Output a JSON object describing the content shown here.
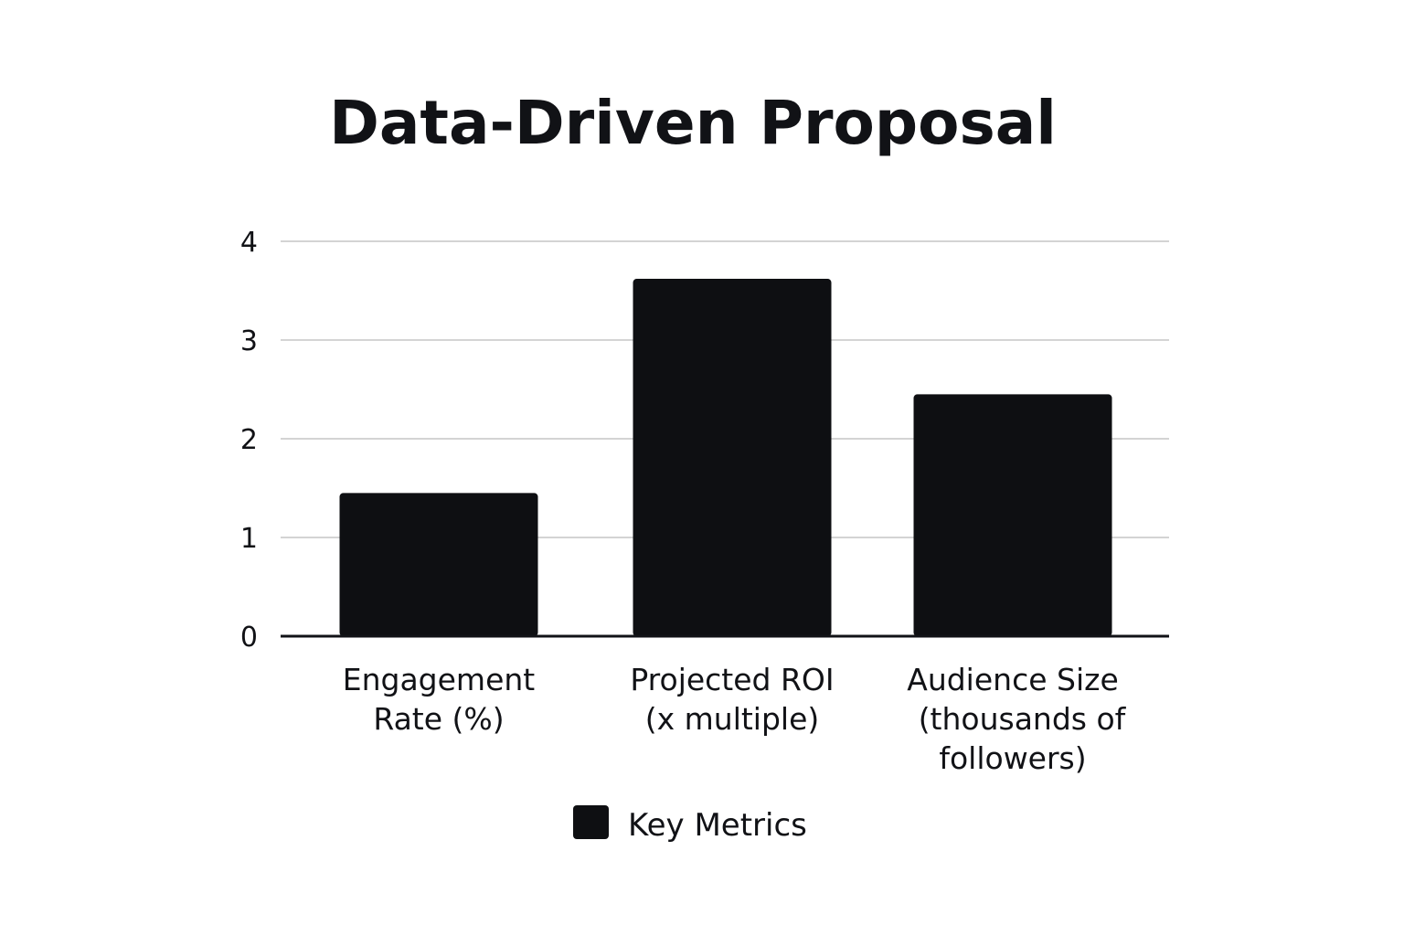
{
  "chart_data": {
    "type": "bar",
    "title": "Data-Driven Proposal",
    "xlabel": "",
    "ylabel": "",
    "categories": [
      [
        "Engagement",
        "Rate (%)"
      ],
      [
        "Projected ROI",
        "(x multiple)"
      ],
      [
        "Audience Size",
        "(thousands of",
        "followers)"
      ]
    ],
    "series": [
      {
        "name": "Key Metrics",
        "values": [
          1.45,
          3.62,
          2.45
        ],
        "color": "#0e0f12"
      }
    ],
    "ylim": [
      0,
      4
    ],
    "yticks": [
      "0",
      "1",
      "2",
      "3",
      "4"
    ],
    "grid": true,
    "legend": "bottom-center"
  }
}
